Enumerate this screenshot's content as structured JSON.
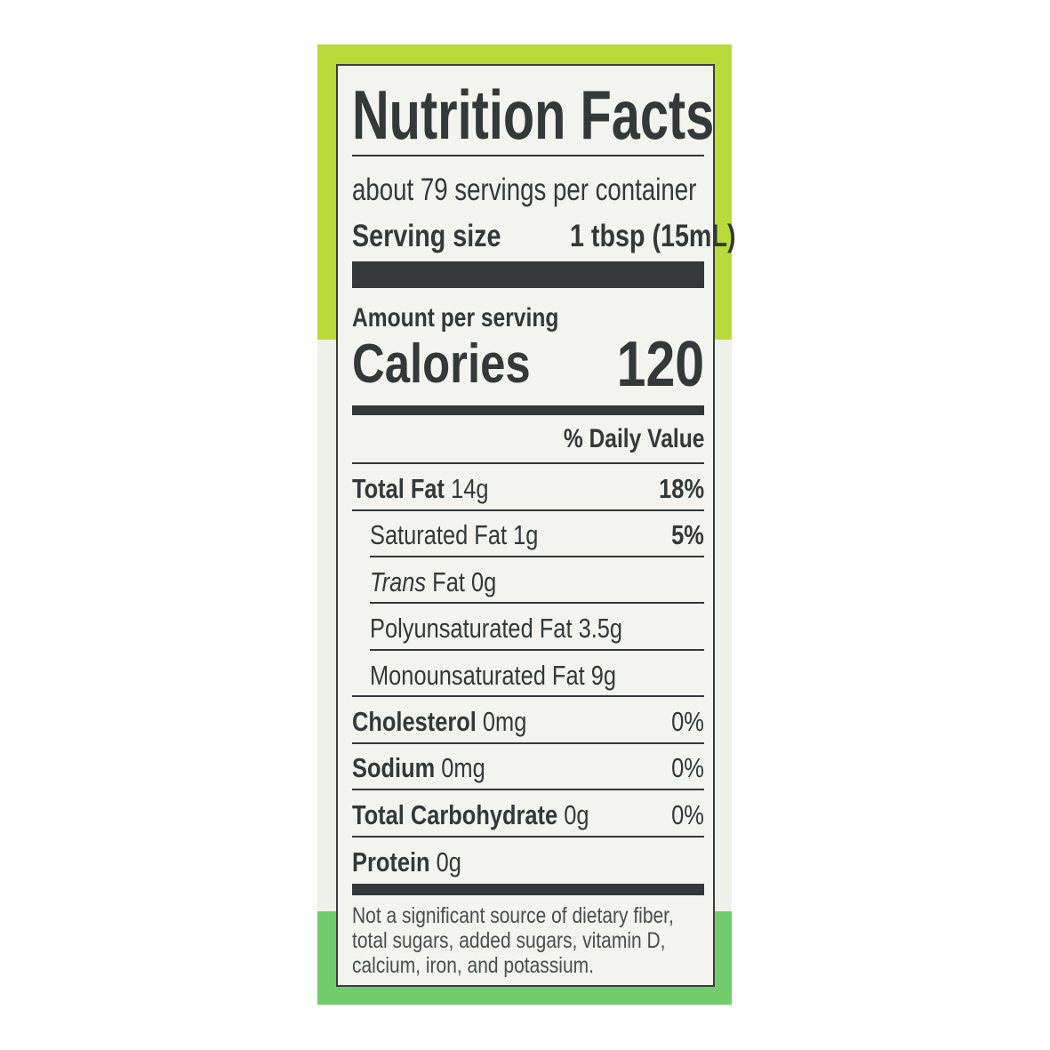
{
  "colors": {
    "top_band": "#b9db3a",
    "bottom_band": "#71cd6c",
    "label_bg": "#f3f4f0",
    "ink": "#343838"
  },
  "title": "Nutrition Facts",
  "servings_per_container": "about 79 servings per container",
  "serving_size": {
    "label": "Serving size",
    "value": "1 tbsp (15mL)"
  },
  "amount_per_serving": "Amount per serving",
  "calories": {
    "label": "Calories",
    "value": "120"
  },
  "daily_value_header": "% Daily Value",
  "nutrients": [
    {
      "name": "Total Fat",
      "amount": "14g",
      "dv": "18%"
    },
    {
      "name": "Saturated Fat",
      "amount": "1g",
      "dv": "5%"
    },
    {
      "name": "Trans",
      "name_rest": "Fat 0g"
    },
    {
      "name": "Polyunsaturated Fat 3.5g"
    },
    {
      "name": "Monounsaturated Fat 9g"
    },
    {
      "name": "Cholesterol",
      "amount": "0mg",
      "dv": "0%"
    },
    {
      "name": "Sodium",
      "amount": "0mg",
      "dv": "0%"
    },
    {
      "name": "Total Carbohydrate",
      "amount": "0g",
      "dv": "0%"
    },
    {
      "name": "Protein",
      "amount": "0g"
    }
  ],
  "footnote": [
    "Not a significant source of dietary fiber,",
    "total sugars, added sugars, vitamin D,",
    "calcium, iron, and potassium."
  ]
}
